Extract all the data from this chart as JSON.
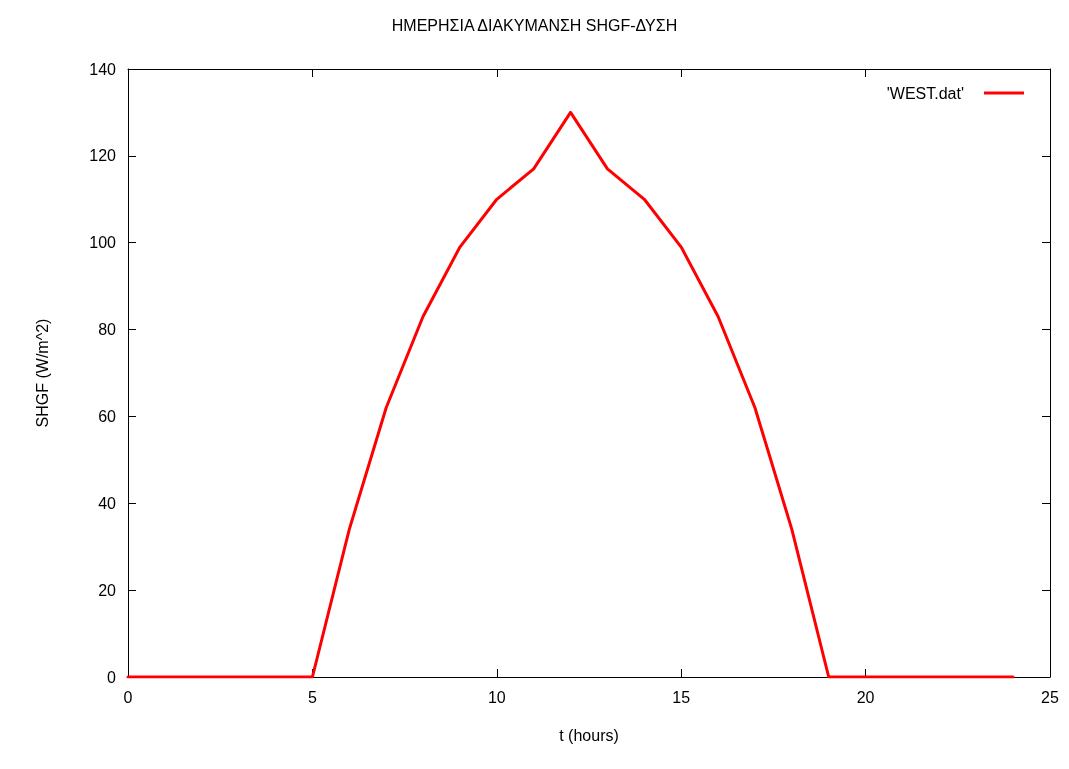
{
  "chart_data": {
    "type": "line",
    "title": "ΗΜΕΡΗΣΙΑ ΔΙΑΚΥΜΑΝΣΗ SHGF-ΔΥΣΗ",
    "xlabel": "t (hours)",
    "ylabel": "SHGF (W/m^2)",
    "x": [
      0,
      1,
      2,
      3,
      4,
      5,
      6,
      7,
      8,
      9,
      10,
      11,
      12,
      13,
      14,
      15,
      16,
      17,
      18,
      19,
      20,
      21,
      22,
      23,
      24
    ],
    "series": [
      {
        "name": "'WEST.dat'",
        "color": "#ff0000",
        "values": [
          0,
          0,
          0,
          0,
          0,
          0,
          34,
          62,
          83,
          99,
          110,
          117,
          130,
          117,
          110,
          99,
          83,
          62,
          34,
          0,
          0,
          0,
          0,
          0,
          0
        ]
      }
    ],
    "xlim": [
      0,
      25
    ],
    "xticks": [
      0,
      5,
      10,
      15,
      20,
      25
    ],
    "ylim": [
      0,
      140
    ],
    "yticks": [
      0,
      20,
      40,
      60,
      80,
      100,
      120,
      140
    ],
    "grid": false,
    "legend": "top right",
    "marker": "none",
    "line_style": "solid"
  }
}
